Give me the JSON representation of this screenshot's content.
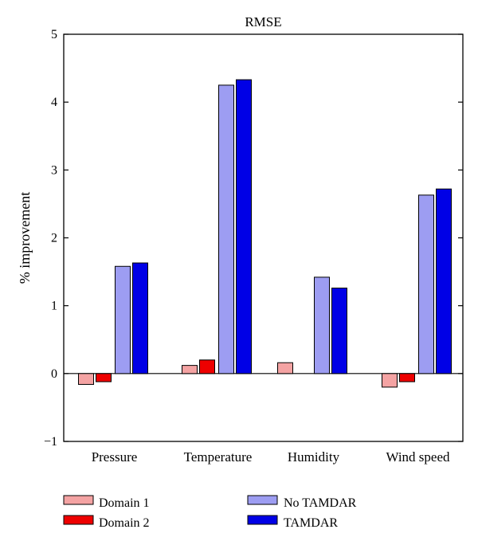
{
  "chart_data": {
    "type": "bar",
    "title": "RMSE",
    "xlabel": "",
    "ylabel": "% improvement",
    "ylim": [
      -1,
      5
    ],
    "yticks": [
      -1,
      0,
      1,
      2,
      3,
      4,
      5
    ],
    "grid": false,
    "legend_position": "bottom",
    "categories": [
      "Pressure",
      "Temperature",
      "Humidity",
      "Wind speed"
    ],
    "series": [
      {
        "name": "Domain 1",
        "color": "#f4a3a3",
        "values": [
          -0.16,
          0.12,
          0.16,
          -0.2
        ]
      },
      {
        "name": "Domain 2",
        "color": "#ee0000",
        "values": [
          -0.12,
          0.2,
          0.0,
          -0.12
        ]
      },
      {
        "name": "No TAMDAR",
        "color": "#9d9df2",
        "values": [
          1.58,
          4.25,
          1.42,
          2.63
        ]
      },
      {
        "name": "TAMDAR",
        "color": "#0000e6",
        "values": [
          1.63,
          4.33,
          1.26,
          2.72
        ]
      }
    ]
  }
}
